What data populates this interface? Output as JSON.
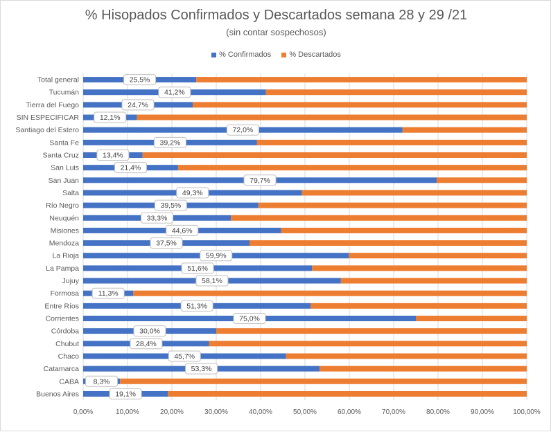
{
  "chart_data": {
    "type": "bar",
    "orientation": "horizontal",
    "stacked": true,
    "percent": true,
    "title": "% Hisopados Confirmados y Descartados semana 28 y 29 /21",
    "subtitle": "(sin contar sospechosos)",
    "categories": [
      "Total general",
      "Tucumán",
      "Tierra del Fuego",
      "SIN ESPECIFICAR",
      "Santiago del Estero",
      "Santa Fe",
      "Santa Cruz",
      "San Luis",
      "San Juan",
      "Salta",
      "Río Negro",
      "Neuquén",
      "Misiones",
      "Mendoza",
      "La Rioja",
      "La Pampa",
      "Jujuy",
      "Formosa",
      "Entre Ríos",
      "Corrientes",
      "Córdoba",
      "Chubut",
      "Chaco",
      "Catamarca",
      "CABA",
      "Buenos Aires"
    ],
    "series": [
      {
        "name": "% Confirmados",
        "color": "#4472c4",
        "values": [
          25.5,
          41.2,
          24.7,
          12.1,
          72.0,
          39.2,
          13.4,
          21.4,
          79.7,
          49.3,
          39.5,
          33.3,
          44.6,
          37.5,
          59.9,
          51.6,
          58.1,
          11.3,
          51.3,
          75.0,
          30.0,
          28.4,
          45.7,
          53.3,
          8.3,
          19.1
        ]
      },
      {
        "name": "% Descartados",
        "color": "#ed7d31",
        "values": [
          74.5,
          58.8,
          75.3,
          87.9,
          28.0,
          60.8,
          86.6,
          78.6,
          20.3,
          50.7,
          60.5,
          66.7,
          55.4,
          62.5,
          40.1,
          48.4,
          41.9,
          88.7,
          48.7,
          25.0,
          70.0,
          71.6,
          54.3,
          46.7,
          91.7,
          80.9
        ]
      }
    ],
    "data_labels": [
      "25,5%",
      "41,2%",
      "24,7%",
      "12,1%",
      "72,0%",
      "39,2%",
      "13,4%",
      "21,4%",
      "79,7%",
      "49,3%",
      "39,5%",
      "33,3%",
      "44,6%",
      "37,5%",
      "59,9%",
      "51,6%",
      "58,1%",
      "11,3%",
      "51,3%",
      "75,0%",
      "30,0%",
      "28,4%",
      "45,7%",
      "53,3%",
      "8,3%",
      "19,1%"
    ],
    "xlim": [
      0,
      100
    ],
    "x_ticks": [
      "0,00%",
      "10,00%",
      "20,00%",
      "30,00%",
      "40,00%",
      "50,00%",
      "60,00%",
      "70,00%",
      "80,00%",
      "90,00%",
      "100,00%"
    ],
    "grid": true,
    "legend_position": "top"
  }
}
